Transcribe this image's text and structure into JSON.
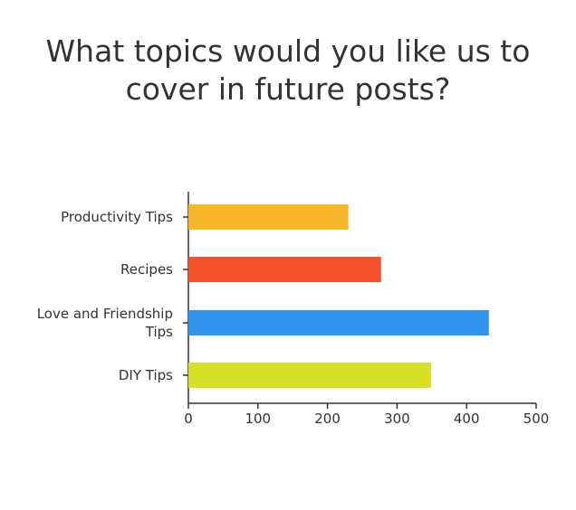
{
  "chart_data": {
    "type": "bar",
    "orientation": "horizontal",
    "title_lines": [
      "What topics would you like us to",
      "cover in future posts?"
    ],
    "categories": [
      [
        "Productivity Tips"
      ],
      [
        "Recipes"
      ],
      [
        "Love and Friendship",
        "Tips"
      ],
      [
        "DIY Tips"
      ]
    ],
    "values": [
      230,
      277,
      432,
      349
    ],
    "colors": [
      "#F8B62A",
      "#F6502C",
      "#3094EC",
      "#D7E024"
    ],
    "xlim": [
      0,
      500
    ],
    "xticks": [
      "0",
      "100",
      "200",
      "300",
      "400",
      "500"
    ],
    "xlabel": "",
    "ylabel": "",
    "grid": false,
    "axis_color": "#333333"
  }
}
